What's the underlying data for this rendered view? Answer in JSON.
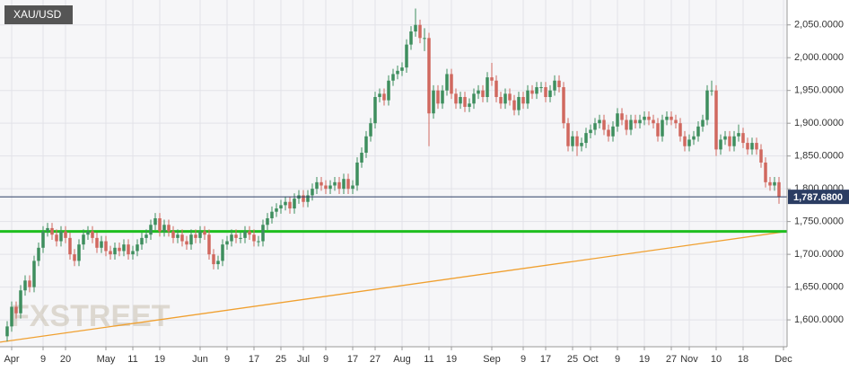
{
  "chart_data": {
    "type": "candlestick",
    "title": "XAU/USD",
    "watermark": "FXSTREET",
    "up_color": "#3e8e5e",
    "down_color": "#d0685f",
    "grid": true,
    "open": [
      1575,
      1590,
      1620,
      1610,
      1645,
      1660,
      1650,
      1690,
      1710,
      1735,
      1740,
      1730,
      1720,
      1735,
      1725,
      1700,
      1690,
      1715,
      1730,
      1735,
      1725,
      1710,
      1720,
      1705,
      1700,
      1710,
      1705,
      1715,
      1700,
      1705,
      1715,
      1725,
      1730,
      1745,
      1755,
      1735,
      1745,
      1735,
      1725,
      1730,
      1720,
      1715,
      1730,
      1725,
      1735,
      1730,
      1700,
      1685,
      1690,
      1715,
      1720,
      1730,
      1725,
      1725,
      1735,
      1730,
      1720,
      1720,
      1745,
      1755,
      1765,
      1770,
      1775,
      1780,
      1770,
      1785,
      1790,
      1780,
      1790,
      1800,
      1810,
      1805,
      1800,
      1805,
      1810,
      1800,
      1815,
      1800,
      1805,
      1840,
      1855,
      1880,
      1900,
      1940,
      1945,
      1935,
      1965,
      1975,
      1980,
      1985,
      2020,
      2040,
      2050,
      2030,
      2030,
      1915,
      1950,
      1930,
      1950,
      1975,
      1945,
      1930,
      1940,
      1925,
      1930,
      1945,
      1950,
      1940,
      1970,
      1965,
      1940,
      1930,
      1945,
      1935,
      1920,
      1940,
      1930,
      1950,
      1945,
      1955,
      1955,
      1940,
      1950,
      1965,
      1955,
      1900,
      1865,
      1880,
      1865,
      1870,
      1885,
      1890,
      1900,
      1905,
      1890,
      1880,
      1895,
      1915,
      1905,
      1890,
      1905,
      1900,
      1905,
      1910,
      1905,
      1900,
      1880,
      1905,
      1910,
      1905,
      1900,
      1880,
      1865,
      1875,
      1880,
      1895,
      1905,
      1950,
      1950,
      1860,
      1875,
      1880,
      1865,
      1880,
      1885,
      1870,
      1860,
      1870,
      1860,
      1840,
      1810,
      1805,
      1810
    ],
    "high": [
      1598,
      1628,
      1628,
      1653,
      1668,
      1668,
      1698,
      1718,
      1743,
      1748,
      1748,
      1738,
      1743,
      1743,
      1733,
      1708,
      1723,
      1738,
      1743,
      1743,
      1733,
      1728,
      1728,
      1713,
      1718,
      1718,
      1723,
      1723,
      1713,
      1723,
      1733,
      1738,
      1753,
      1763,
      1763,
      1753,
      1753,
      1743,
      1738,
      1738,
      1728,
      1738,
      1738,
      1743,
      1743,
      1738,
      1708,
      1698,
      1723,
      1728,
      1738,
      1738,
      1733,
      1743,
      1743,
      1738,
      1728,
      1753,
      1763,
      1773,
      1778,
      1783,
      1788,
      1788,
      1793,
      1798,
      1798,
      1798,
      1808,
      1818,
      1818,
      1813,
      1813,
      1818,
      1818,
      1823,
      1823,
      1813,
      1848,
      1863,
      1888,
      1908,
      1948,
      1953,
      1953,
      1973,
      1983,
      1988,
      1993,
      2028,
      2048,
      2075,
      2058,
      2045,
      2038,
      1958,
      1958,
      1958,
      1983,
      1983,
      1953,
      1948,
      1948,
      1938,
      1953,
      1958,
      1958,
      1978,
      1992,
      1973,
      1948,
      1953,
      1953,
      1943,
      1948,
      1948,
      1958,
      1958,
      1963,
      1963,
      1963,
      1958,
      1973,
      1973,
      1963,
      1908,
      1888,
      1888,
      1878,
      1893,
      1898,
      1908,
      1913,
      1913,
      1898,
      1903,
      1923,
      1923,
      1913,
      1913,
      1913,
      1913,
      1918,
      1918,
      1913,
      1908,
      1913,
      1918,
      1918,
      1913,
      1908,
      1888,
      1883,
      1888,
      1903,
      1913,
      1958,
      1965,
      1958,
      1883,
      1888,
      1888,
      1888,
      1898,
      1893,
      1878,
      1878,
      1878,
      1868,
      1848,
      1818,
      1818,
      1818
    ],
    "low": [
      1567,
      1582,
      1602,
      1602,
      1637,
      1642,
      1642,
      1682,
      1702,
      1727,
      1722,
      1712,
      1712,
      1717,
      1692,
      1682,
      1682,
      1707,
      1722,
      1717,
      1702,
      1702,
      1697,
      1692,
      1692,
      1697,
      1697,
      1692,
      1692,
      1697,
      1707,
      1717,
      1722,
      1737,
      1727,
      1727,
      1727,
      1717,
      1717,
      1712,
      1707,
      1707,
      1717,
      1717,
      1722,
      1692,
      1677,
      1677,
      1682,
      1707,
      1712,
      1717,
      1717,
      1717,
      1722,
      1712,
      1712,
      1712,
      1737,
      1747,
      1757,
      1762,
      1767,
      1762,
      1762,
      1777,
      1772,
      1772,
      1782,
      1792,
      1797,
      1792,
      1792,
      1797,
      1792,
      1792,
      1792,
      1792,
      1797,
      1832,
      1847,
      1872,
      1892,
      1932,
      1927,
      1927,
      1957,
      1967,
      1972,
      1977,
      2012,
      2032,
      2022,
      2010,
      1865,
      1907,
      1922,
      1922,
      1942,
      1937,
      1922,
      1922,
      1917,
      1917,
      1922,
      1937,
      1932,
      1932,
      1957,
      1932,
      1922,
      1922,
      1927,
      1912,
      1912,
      1922,
      1922,
      1937,
      1937,
      1947,
      1932,
      1932,
      1942,
      1947,
      1892,
      1857,
      1857,
      1850,
      1857,
      1862,
      1877,
      1882,
      1892,
      1882,
      1872,
      1872,
      1887,
      1897,
      1882,
      1882,
      1892,
      1892,
      1897,
      1897,
      1892,
      1872,
      1872,
      1897,
      1897,
      1892,
      1872,
      1857,
      1857,
      1867,
      1872,
      1887,
      1897,
      1942,
      1850,
      1852,
      1867,
      1857,
      1857,
      1872,
      1862,
      1852,
      1852,
      1852,
      1832,
      1802,
      1797,
      1797,
      1777
    ],
    "close": [
      1590,
      1620,
      1610,
      1645,
      1660,
      1650,
      1690,
      1710,
      1735,
      1740,
      1730,
      1720,
      1735,
      1725,
      1700,
      1690,
      1715,
      1730,
      1735,
      1725,
      1710,
      1720,
      1705,
      1700,
      1710,
      1705,
      1715,
      1700,
      1705,
      1715,
      1725,
      1730,
      1745,
      1755,
      1735,
      1745,
      1735,
      1725,
      1730,
      1720,
      1715,
      1730,
      1725,
      1735,
      1730,
      1700,
      1685,
      1690,
      1715,
      1720,
      1730,
      1725,
      1725,
      1735,
      1730,
      1720,
      1720,
      1745,
      1755,
      1765,
      1770,
      1775,
      1780,
      1770,
      1785,
      1790,
      1780,
      1790,
      1800,
      1810,
      1805,
      1800,
      1805,
      1810,
      1800,
      1815,
      1800,
      1805,
      1840,
      1855,
      1880,
      1900,
      1940,
      1945,
      1935,
      1965,
      1975,
      1980,
      1985,
      2020,
      2040,
      2050,
      2030,
      2030,
      1915,
      1950,
      1930,
      1950,
      1975,
      1945,
      1930,
      1940,
      1925,
      1930,
      1945,
      1950,
      1940,
      1970,
      1965,
      1940,
      1930,
      1945,
      1935,
      1920,
      1940,
      1930,
      1950,
      1945,
      1955,
      1955,
      1940,
      1950,
      1965,
      1955,
      1900,
      1865,
      1880,
      1865,
      1870,
      1885,
      1890,
      1900,
      1905,
      1890,
      1880,
      1895,
      1915,
      1905,
      1890,
      1905,
      1900,
      1905,
      1910,
      1905,
      1900,
      1880,
      1905,
      1910,
      1905,
      1900,
      1880,
      1865,
      1875,
      1880,
      1895,
      1905,
      1950,
      1950,
      1860,
      1875,
      1880,
      1865,
      1880,
      1885,
      1870,
      1860,
      1870,
      1860,
      1840,
      1810,
      1805,
      1810,
      1787.68
    ],
    "last_price": {
      "value": 1787.68,
      "label": "1,787.6800",
      "color": "#2b3d63"
    },
    "levels": [
      {
        "value": 1735,
        "color": "#1fbe1f"
      }
    ],
    "trendline": {
      "x": [
        -1.6,
        173.8
      ],
      "y": [
        1566,
        1735
      ],
      "color": "#f0a030"
    },
    "xlim": [
      -1.6,
      173.8
    ],
    "ylim": [
      1559,
      2088
    ],
    "xticks": [
      {
        "value": 1,
        "label": "Apr"
      },
      {
        "value": 8,
        "label": "9"
      },
      {
        "value": 13,
        "label": "20"
      },
      {
        "value": 22,
        "label": "May"
      },
      {
        "value": 28,
        "label": "11"
      },
      {
        "value": 34,
        "label": "19"
      },
      {
        "value": 43,
        "label": "Jun"
      },
      {
        "value": 49,
        "label": "9"
      },
      {
        "value": 55,
        "label": "17"
      },
      {
        "value": 61,
        "label": "25"
      },
      {
        "value": 66,
        "label": "Jul"
      },
      {
        "value": 71,
        "label": "9"
      },
      {
        "value": 77,
        "label": "17"
      },
      {
        "value": 82,
        "label": "27"
      },
      {
        "value": 88,
        "label": "Aug"
      },
      {
        "value": 94,
        "label": "11"
      },
      {
        "value": 99,
        "label": "19"
      },
      {
        "value": 108,
        "label": "Sep"
      },
      {
        "value": 115,
        "label": "9"
      },
      {
        "value": 120,
        "label": "17"
      },
      {
        "value": 126,
        "label": "25"
      },
      {
        "value": 130,
        "label": "Oct"
      },
      {
        "value": 136,
        "label": "9"
      },
      {
        "value": 142,
        "label": "19"
      },
      {
        "value": 148,
        "label": "27"
      },
      {
        "value": 152,
        "label": "Nov"
      },
      {
        "value": 158,
        "label": "10"
      },
      {
        "value": 164,
        "label": "18"
      },
      {
        "value": 173,
        "label": "Dec"
      }
    ],
    "yticks": [
      {
        "value": 1600,
        "label": "1,600.0000"
      },
      {
        "value": 1650,
        "label": "1,650.0000"
      },
      {
        "value": 1700,
        "label": "1,700.0000"
      },
      {
        "value": 1750,
        "label": "1,750.0000"
      },
      {
        "value": 1800,
        "label": "1,800.0000"
      },
      {
        "value": 1850,
        "label": "1,850.0000"
      },
      {
        "value": 1900,
        "label": "1,900.0000"
      },
      {
        "value": 1950,
        "label": "1,950.0000"
      },
      {
        "value": 2000,
        "label": "2,000.0000"
      },
      {
        "value": 2050,
        "label": "2,050.0000"
      }
    ]
  }
}
